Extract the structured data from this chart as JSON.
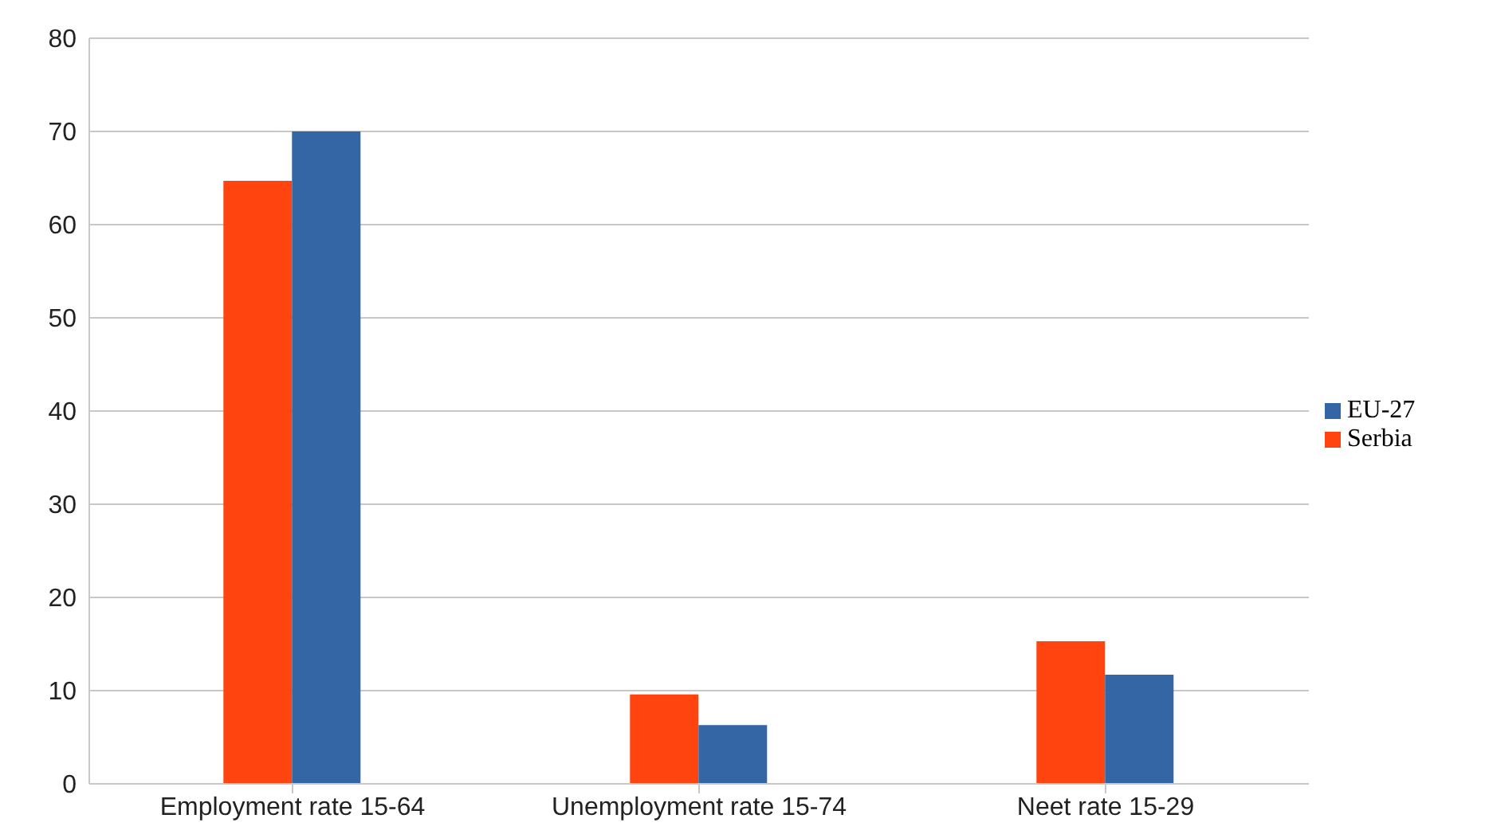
{
  "chart_data": {
    "type": "bar",
    "categories": [
      "Employment rate 15-64",
      "Unemployment  rate 15-74",
      "Neet rate 15-29"
    ],
    "series": [
      {
        "name": "Serbia",
        "color": "#ff4410",
        "values": [
          64.7,
          9.6,
          15.3
        ]
      },
      {
        "name": "EU-27",
        "color": "#3465a4",
        "values": [
          70.0,
          6.3,
          11.7
        ]
      }
    ],
    "ylim": [
      0,
      80
    ],
    "yticks": [
      0,
      10,
      20,
      30,
      40,
      50,
      60,
      70,
      80
    ],
    "grid": "y",
    "legend": "right"
  }
}
